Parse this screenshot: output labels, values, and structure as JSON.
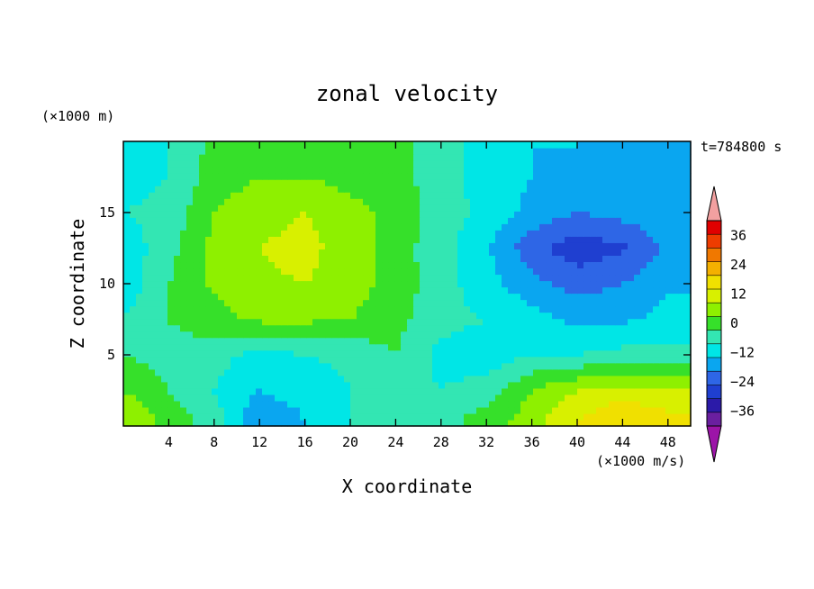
{
  "chart_data": {
    "type": "heatmap",
    "title": "zonal velocity",
    "time_label": "t=784800 s",
    "xlabel": "X coordinate",
    "ylabel": "Z coordinate",
    "x_unit_label": "(×1000 m)",
    "colorbar_unit_label": "(×1000 m/s)",
    "xlim": [
      0,
      50
    ],
    "ylim": [
      0,
      20
    ],
    "x_ticks": [
      4,
      8,
      12,
      16,
      20,
      24,
      28,
      32,
      36,
      40,
      44,
      48
    ],
    "y_ticks": [
      5,
      10,
      15
    ],
    "grid": false,
    "colorbar": {
      "position": "right",
      "levels": [
        -42,
        -36,
        -30,
        -24,
        -18,
        -12,
        -6,
        0,
        6,
        12,
        18,
        24,
        30,
        36,
        42
      ],
      "tick_values": [
        36,
        24,
        12,
        0,
        -12,
        -24,
        -36
      ],
      "tick_labels": [
        "36",
        "24",
        "12",
        "0",
        "−12",
        "−24",
        "−36"
      ],
      "colors": [
        "#6a1fa0",
        "#2b1aa8",
        "#1f3fd0",
        "#2e66e6",
        "#0aa6f0",
        "#00e6e6",
        "#33e6b3",
        "#36e02a",
        "#8ef000",
        "#d8f000",
        "#f0e000",
        "#f4b000",
        "#f07800",
        "#ee3c00",
        "#e00000"
      ],
      "under_color": "#9c14a8",
      "over_color": "#f2a0a0"
    },
    "x": [
      0,
      4,
      8,
      12,
      16,
      20,
      24,
      28,
      32,
      36,
      40,
      44,
      48
    ],
    "z": [
      0.5,
      2.5,
      5,
      7.5,
      10,
      12.5,
      15,
      17.5,
      19.5
    ],
    "values": [
      [
        12,
        3,
        -3,
        -18,
        -12,
        -6,
        0,
        -3,
        3,
        9,
        18,
        24,
        20
      ],
      [
        6,
        0,
        -6,
        -12,
        -9,
        -6,
        -3,
        -6,
        -3,
        6,
        12,
        15,
        12
      ],
      [
        0,
        -2,
        -4,
        -8,
        -6,
        -5,
        0,
        -8,
        -10,
        -6,
        -6,
        -4,
        -4
      ],
      [
        -6,
        0,
        4,
        7,
        7,
        6,
        2,
        -4,
        -6,
        -9,
        -14,
        -13,
        -10
      ],
      [
        -10,
        0,
        7,
        11,
        12,
        9,
        3,
        -3,
        -10,
        -16,
        -20,
        -18,
        -13
      ],
      [
        -10,
        -2,
        8,
        12,
        14,
        9,
        3,
        -4,
        -11,
        -22,
        -28,
        -25,
        -17
      ],
      [
        -6,
        -4,
        6,
        10,
        12,
        8,
        4,
        -3,
        -8,
        -14,
        -18,
        -16,
        -13
      ],
      [
        -9,
        -6,
        3,
        6,
        6,
        4,
        3,
        -4,
        -8,
        -12,
        -14,
        -14,
        -14
      ],
      [
        -9,
        -6,
        2,
        4,
        4,
        3,
        3,
        -4,
        -8,
        -12,
        -12,
        -14,
        -14
      ]
    ]
  }
}
